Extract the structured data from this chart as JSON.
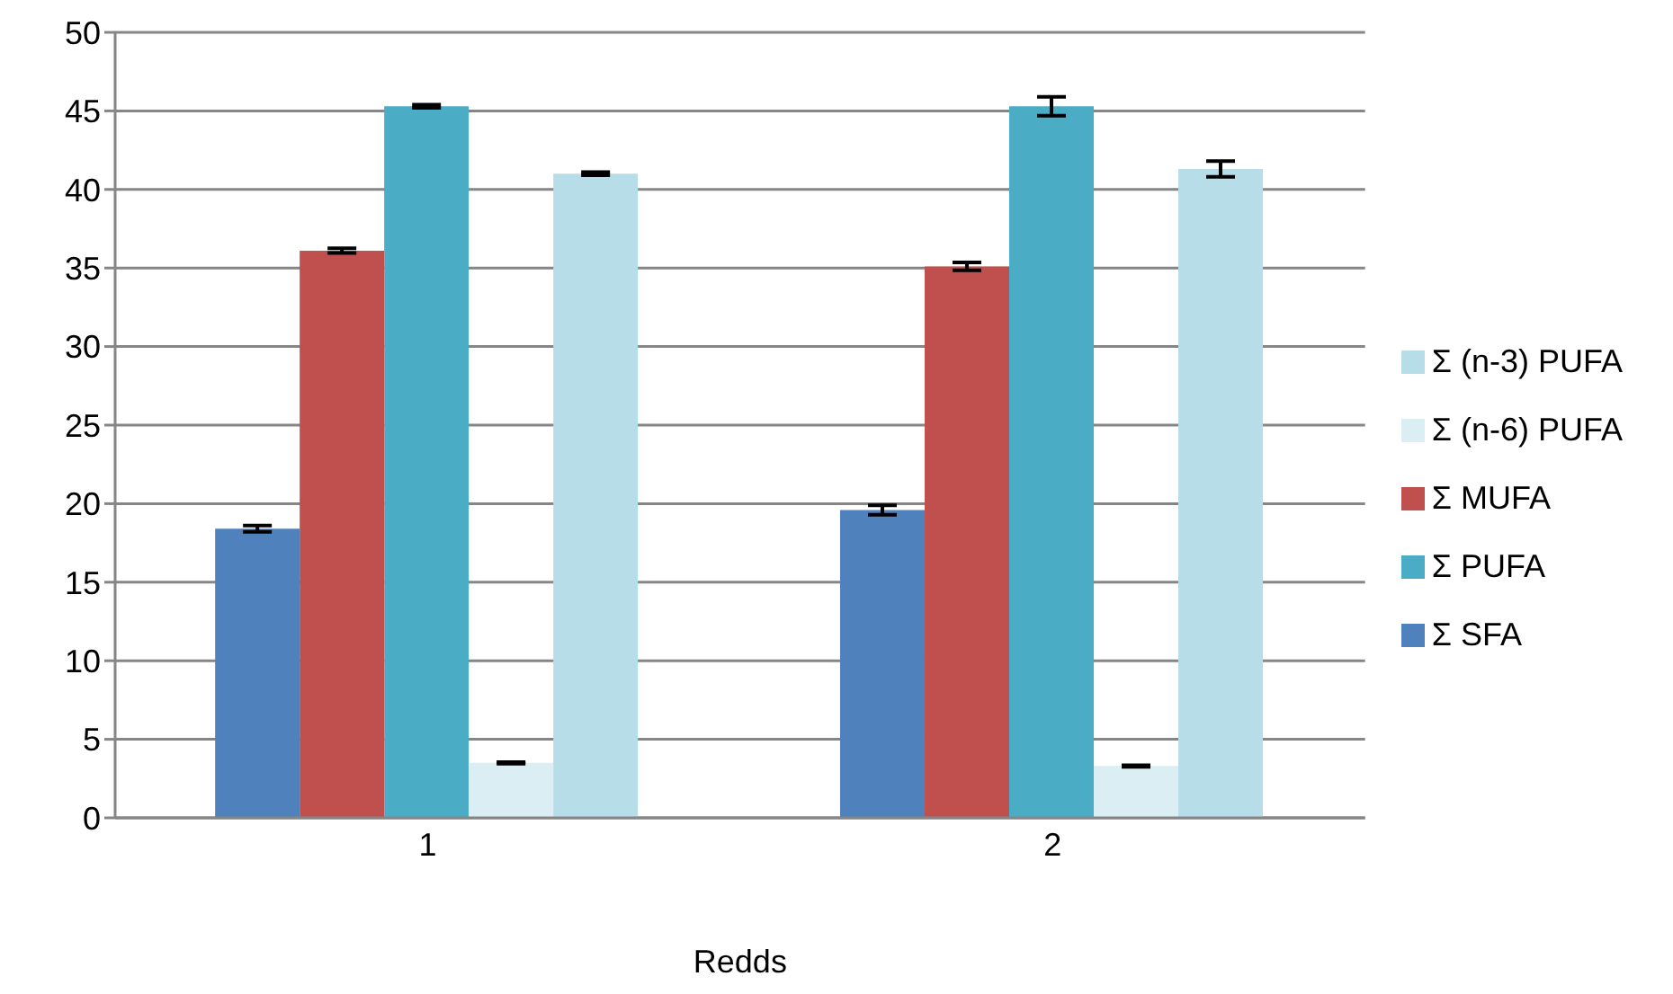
{
  "chart_data": {
    "type": "bar",
    "xlabel": "Redds",
    "categories": [
      "1",
      "2"
    ],
    "series": [
      {
        "name": "Σ SFA",
        "color": "#4f81bd",
        "values": [
          18.4,
          19.6
        ],
        "errors": [
          0.2,
          0.3
        ]
      },
      {
        "name": "Σ MUFA",
        "color": "#c0504d",
        "values": [
          36.1,
          35.1
        ],
        "errors": [
          0.15,
          0.25
        ]
      },
      {
        "name": "Σ PUFA",
        "color": "#4bacc6",
        "values": [
          45.3,
          45.3
        ],
        "errors": [
          0.1,
          0.6
        ]
      },
      {
        "name": "Σ (n-6) PUFA",
        "color": "#dbeef3",
        "values": [
          3.5,
          3.3
        ],
        "errors": [
          0.05,
          0.05
        ]
      },
      {
        "name": "Σ (n-3) PUFA",
        "color": "#b7dde8",
        "values": [
          41.0,
          41.3
        ],
        "errors": [
          0.1,
          0.5
        ]
      }
    ],
    "ylim": [
      0,
      50
    ],
    "yticks": [
      0,
      5,
      10,
      15,
      20,
      25,
      30,
      35,
      40,
      45,
      50
    ],
    "grid": "y",
    "legend": "right"
  }
}
